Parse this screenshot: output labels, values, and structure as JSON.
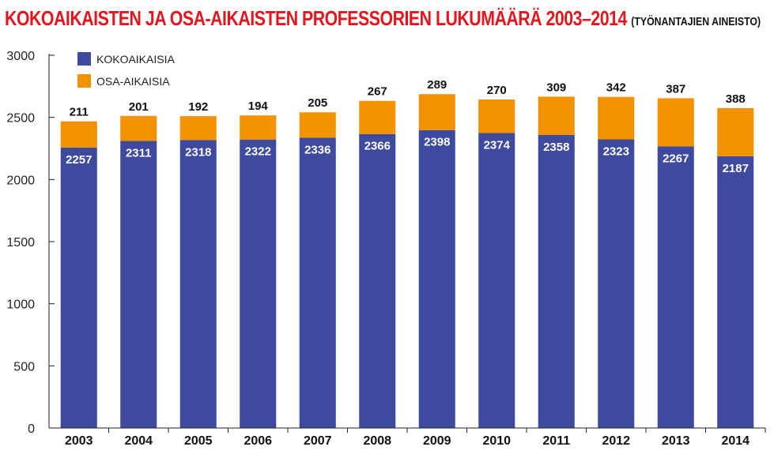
{
  "chart_data": {
    "type": "bar",
    "stacked": true,
    "title": "KOKOAIKAISTEN JA OSA-AIKAISTEN PROFESSORIEN LUKUMÄÄRÄ 2003–2014",
    "subtitle": "(TYÖNANTAJIEN AINEISTO)",
    "categories": [
      "2003",
      "2004",
      "2005",
      "2006",
      "2007",
      "2008",
      "2009",
      "2010",
      "2011",
      "2012",
      "2013",
      "2014"
    ],
    "series": [
      {
        "name": "KOKOAIKAISIA",
        "color": "#3d4a9e",
        "values": [
          2257,
          2311,
          2318,
          2322,
          2336,
          2366,
          2398,
          2374,
          2358,
          2323,
          2267,
          2187
        ]
      },
      {
        "name": "OSA-AIKAISIA",
        "color": "#f39200",
        "values": [
          211,
          201,
          192,
          194,
          205,
          267,
          289,
          270,
          309,
          342,
          387,
          388
        ]
      }
    ],
    "ylim": [
      0,
      3000
    ],
    "yticks": [
      0,
      500,
      1000,
      1500,
      2000,
      2500,
      3000
    ],
    "grid": false,
    "legend": "top-left"
  }
}
